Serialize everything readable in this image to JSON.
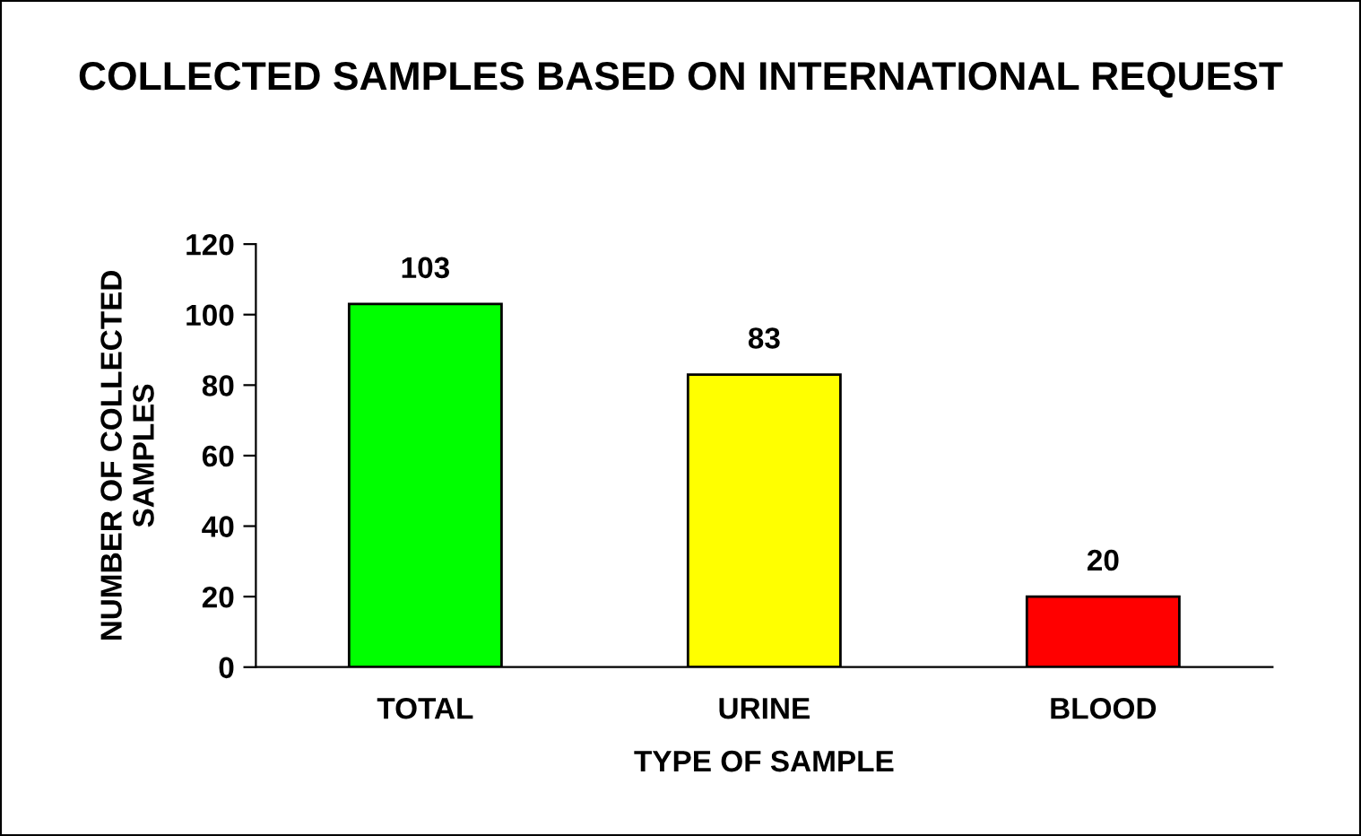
{
  "chart_data": {
    "type": "bar",
    "title": "COLLECTED SAMPLES BASED ON INTERNATIONAL REQUEST",
    "xlabel": "TYPE OF SAMPLE",
    "ylabel": "NUMBER OF COLLECTED\nSAMPLES",
    "categories": [
      "TOTAL",
      "URINE",
      "BLOOD"
    ],
    "values": [
      103,
      83,
      20
    ],
    "colors": [
      "#00ff00",
      "#ffff00",
      "#ff0000"
    ],
    "ylim": [
      0,
      120
    ],
    "yticks": [
      0,
      20,
      40,
      60,
      80,
      100,
      120
    ],
    "grid": false,
    "legend": false,
    "data_labels": true
  }
}
